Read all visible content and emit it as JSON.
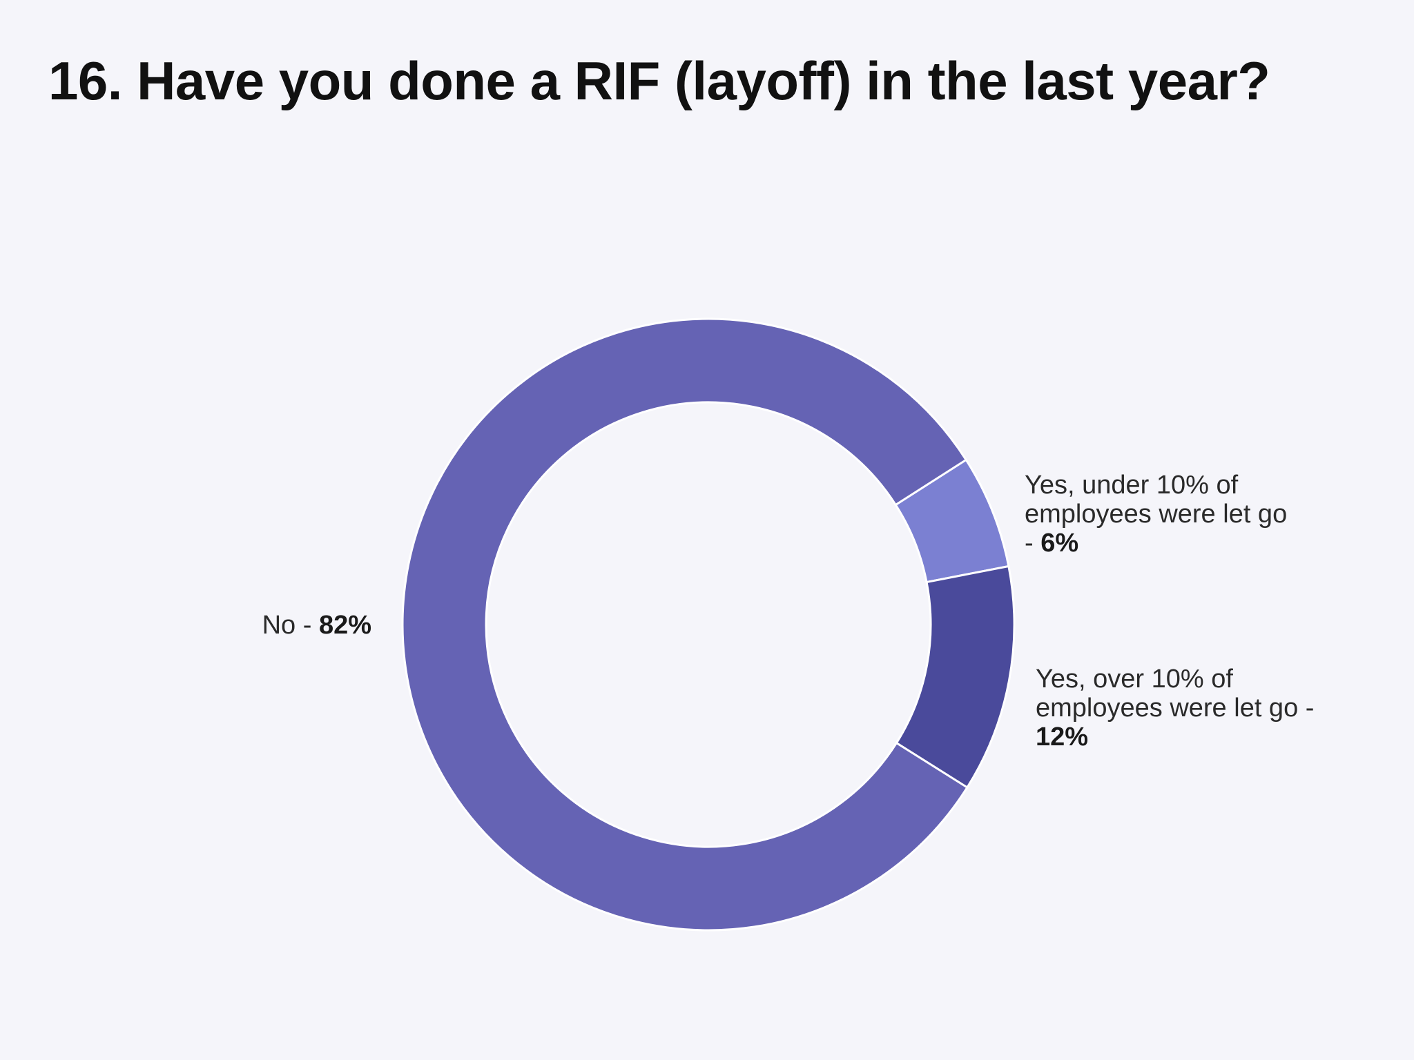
{
  "title": "16. Have you done a RIF (layoff) in the last year?",
  "chart_data": {
    "type": "pie",
    "donut": true,
    "title": "16. Have you done a RIF (layoff) in the last year?",
    "slices": [
      {
        "label": "Yes, under 10% of employees were let go",
        "value": 6,
        "display_lines": [
          "Yes, under 10% of",
          "employees were let go",
          "- "
        ],
        "value_text": "6%",
        "color": "#7b80d2"
      },
      {
        "label": "Yes, over 10% of employees were let go",
        "value": 12,
        "display_lines": [
          "Yes, over 10% of",
          "employees were let go -",
          ""
        ],
        "value_text": "12%",
        "color": "#4a4a9b"
      },
      {
        "label": "No",
        "value": 82,
        "display_lines": [
          "No - "
        ],
        "value_text": "82%",
        "color": "#6563b4"
      }
    ],
    "colors": {
      "background": "#f5f5fa",
      "separator": "#ffffff"
    }
  }
}
